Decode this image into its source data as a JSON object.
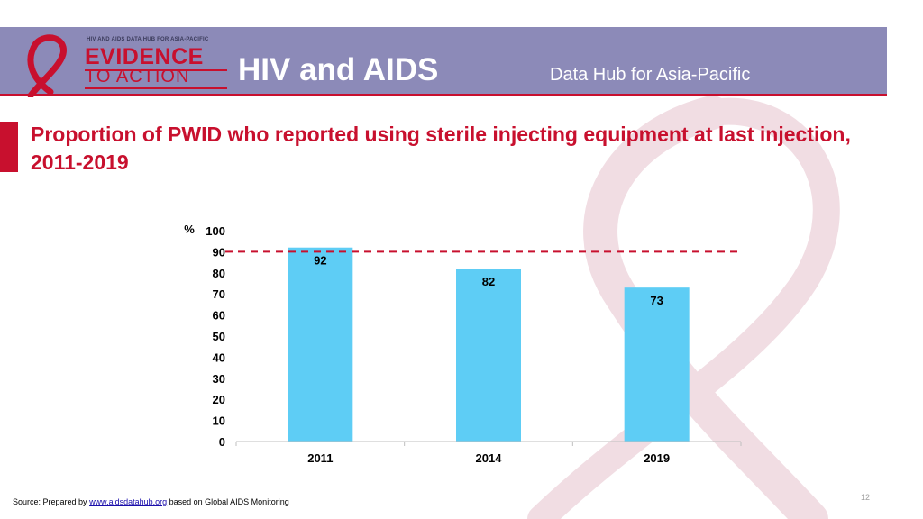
{
  "header": {
    "logo_tagline": "HIV AND AIDS DATA HUB FOR ASIA-PACIFIC",
    "logo_evidence": "EVIDENCE",
    "logo_to_action": "TO ACTION",
    "title": "HIV and AIDS",
    "subtitle": "Data Hub for Asia-Pacific"
  },
  "slide": {
    "title": "Proportion of PWID who reported using sterile injecting equipment at last injection, 2011-2019"
  },
  "colors": {
    "bar": "#5ecdf5",
    "target_line": "#c8102e",
    "title": "#c8102e",
    "header": "#8c8ab8"
  },
  "chart_data": {
    "type": "bar",
    "categories": [
      "2011",
      "2014",
      "2019"
    ],
    "values": [
      92,
      82,
      73
    ],
    "data_labels": [
      "92",
      "82",
      "73"
    ],
    "ylabel": "%",
    "ylim": [
      0,
      100
    ],
    "yticks": [
      0,
      10,
      20,
      30,
      40,
      50,
      60,
      70,
      80,
      90,
      100
    ],
    "target_line": 90,
    "grid": false,
    "legend": "none"
  },
  "footer": {
    "source_prefix": "Source: Prepared by ",
    "source_link": "www.aidsdatahub.org",
    "source_suffix": " based on Global AIDS Monitoring",
    "page_number": "12"
  }
}
